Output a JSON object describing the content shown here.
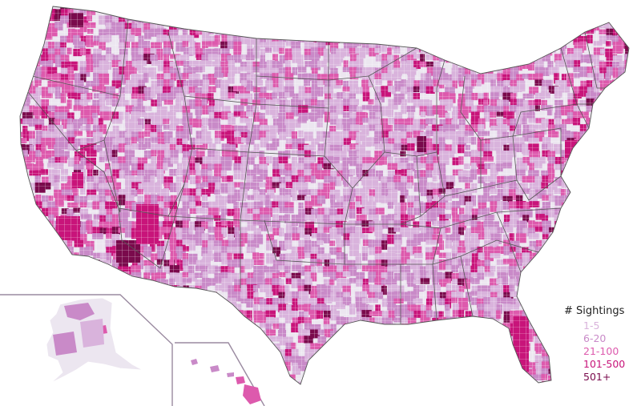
{
  "legend": {
    "title": "# Sightings",
    "items": [
      {
        "label": "1-5",
        "color": "#d9b3dc"
      },
      {
        "label": "6-20",
        "color": "#c98ac8"
      },
      {
        "label": "21-100",
        "color": "#dd5aad"
      },
      {
        "label": "101-500",
        "color": "#c8147a"
      },
      {
        "label": "501+",
        "color": "#7a0a4c"
      }
    ]
  },
  "colors": {
    "no_data": "#ece6f0",
    "state_border": "#555555",
    "county_border": "#ffffff",
    "inset_border": "#9a8aa0"
  },
  "regions": [
    "contiguous-us",
    "alaska-inset",
    "hawaii-inset"
  ]
}
